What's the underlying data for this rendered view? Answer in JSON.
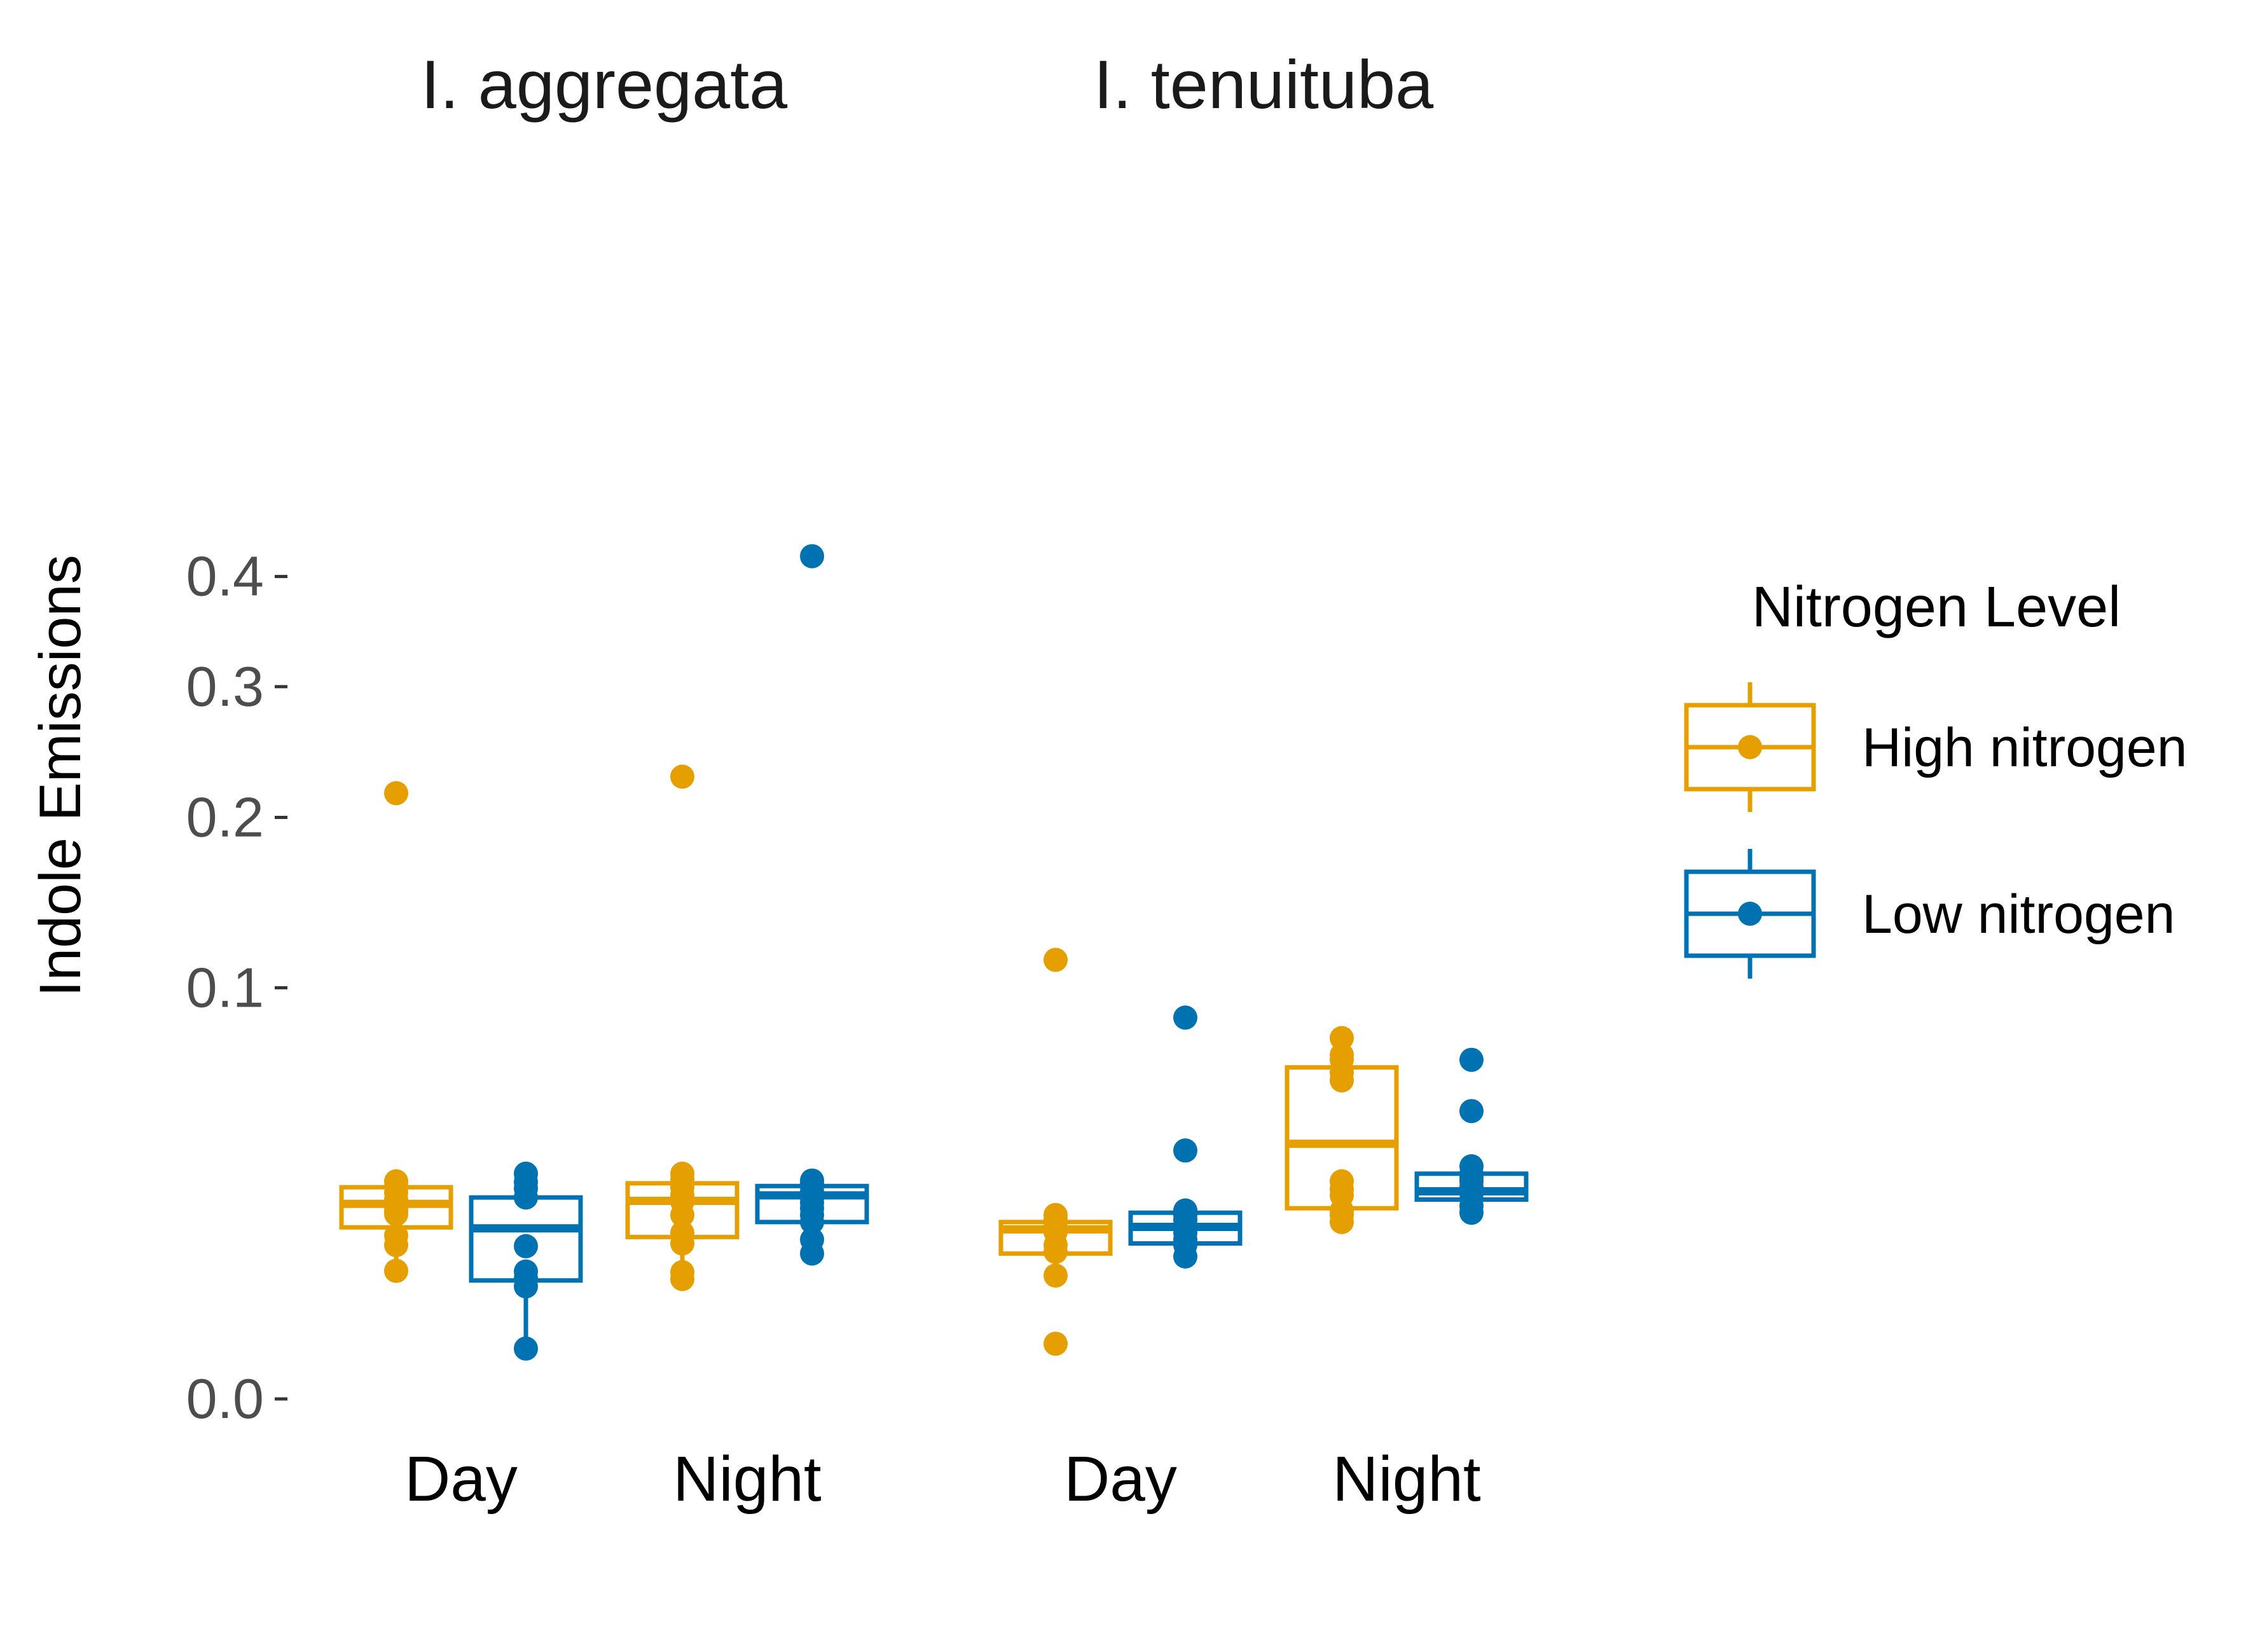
{
  "chart_data": {
    "type": "box",
    "y_axis": {
      "label": "Indole Emissions",
      "scale": "sqrt",
      "ticks": [
        0.0,
        0.1,
        0.2,
        0.3,
        0.4
      ],
      "tick_labels": [
        "0.0",
        "0.1",
        "0.2",
        "0.3",
        "0.4"
      ],
      "ylim": [
        0,
        0.43
      ]
    },
    "grid": false,
    "facets": [
      {
        "title": "I. aggregata",
        "categories": [
          "Day",
          "Night"
        ],
        "groups": [
          {
            "category": "Day",
            "series": "High nitrogen",
            "box": {
              "lower_whisker": 0.0097,
              "q1": 0.0174,
              "median": 0.0225,
              "q3": 0.0265,
              "upper_whisker": 0.028
            },
            "points": [
              0.028,
              0.0268,
              0.0252,
              0.0235,
              0.0226,
              0.021,
              0.0202,
              0.0158,
              0.014,
              0.0097,
              0.217
            ]
          },
          {
            "category": "Day",
            "series": "Low nitrogen",
            "box": {
              "lower_whisker": 0.0015,
              "q1": 0.0083,
              "median": 0.0172,
              "q3": 0.024,
              "upper_whisker": 0.03
            },
            "points": [
              0.03,
              0.0278,
              0.0262,
              0.024,
              0.0138,
              0.0096,
              0.0086,
              0.0075,
              0.0015
            ]
          },
          {
            "category": "Night",
            "series": "High nitrogen",
            "box": {
              "lower_whisker": 0.0085,
              "q1": 0.0155,
              "median": 0.0232,
              "q3": 0.0275,
              "upper_whisker": 0.03
            },
            "points": [
              0.03,
              0.0285,
              0.0265,
              0.0246,
              0.023,
              0.02,
              0.0163,
              0.0143,
              0.0095,
              0.0085,
              0.229
            ]
          },
          {
            "category": "Night",
            "series": "Low nitrogen",
            "box": {
              "lower_whisker": 0.0125,
              "q1": 0.0185,
              "median": 0.0245,
              "q3": 0.0268,
              "upper_whisker": 0.0282
            },
            "points": [
              0.0282,
              0.0275,
              0.0268,
              0.0255,
              0.0246,
              0.024,
              0.0228,
              0.0215,
              0.02,
              0.0185,
              0.015,
              0.0125,
              0.42
            ]
          }
        ]
      },
      {
        "title": "I. tenuituba",
        "categories": [
          "Day",
          "Night"
        ],
        "groups": [
          {
            "category": "Day",
            "series": "High nitrogen",
            "box": {
              "lower_whisker": 0.009,
              "q1": 0.0125,
              "median": 0.017,
              "q3": 0.0185,
              "upper_whisker": 0.02
            },
            "points": [
              0.02,
              0.019,
              0.0175,
              0.0165,
              0.014,
              0.0128,
              0.009,
              0.0018,
              0.114
            ]
          },
          {
            "category": "Day",
            "series": "Low nitrogen",
            "box": {
              "lower_whisker": 0.012,
              "q1": 0.0143,
              "median": 0.0175,
              "q3": 0.0205,
              "upper_whisker": 0.021
            },
            "points": [
              0.021,
              0.02,
              0.019,
              0.0178,
              0.0163,
              0.015,
              0.014,
              0.012,
              0.086,
              0.0365
            ]
          },
          {
            "category": "Night",
            "series": "High nitrogen",
            "box": {
              "lower_whisker": 0.0185,
              "q1": 0.0215,
              "median": 0.0385,
              "q3": 0.065,
              "upper_whisker": 0.077
            },
            "points": [
              0.077,
              0.07,
              0.068,
              0.063,
              0.06,
              0.028,
              0.026,
              0.0245,
              0.021,
              0.02,
              0.0185
            ]
          },
          {
            "category": "Night",
            "series": "Low nitrogen",
            "box": {
              "lower_whisker": 0.0205,
              "q1": 0.0235,
              "median": 0.0255,
              "q3": 0.03,
              "upper_whisker": 0.032
            },
            "points": [
              0.032,
              0.03,
              0.029,
              0.028,
              0.0265,
              0.025,
              0.0235,
              0.022,
              0.0205,
              0.068,
              0.049
            ]
          }
        ]
      }
    ],
    "legend": {
      "title": "Nitrogen Level",
      "position": "right",
      "entries": [
        {
          "label": "High nitrogen",
          "color": "#E69F00"
        },
        {
          "label": "Low nitrogen",
          "color": "#0072B2"
        }
      ]
    }
  }
}
